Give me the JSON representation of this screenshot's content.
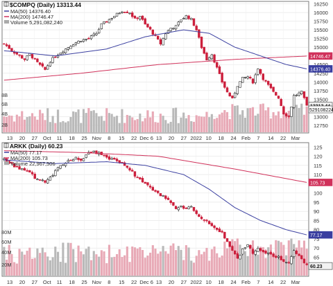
{
  "chart_data": [
    {
      "type": "candlestick",
      "symbol": "$COMPQ",
      "title": "$COMPQ (Daily) 13313.44",
      "legend": {
        "ma50": "MA(50) 14376.40",
        "ma200": "MA(200) 14746.47",
        "volume": "Volume 5,291,082,240"
      },
      "x_tick_labels": [
        "13",
        "20",
        "27",
        "Oct",
        "11",
        "18",
        "25",
        "Nov",
        "8",
        "15",
        "22",
        "Dec 6",
        "13",
        "20",
        "27",
        "2022",
        "10",
        "18",
        "24",
        "Feb",
        "7",
        "14",
        "22",
        "Mar"
      ],
      "y_ticks": [
        12750,
        13000,
        13250,
        13500,
        13750,
        14000,
        14250,
        14500,
        14750,
        15000,
        15250,
        15500,
        15750,
        16000,
        16250
      ],
      "ylim": [
        12550,
        16300
      ],
      "volume_ticks": [
        "2B",
        "4B",
        "6B",
        "8B"
      ],
      "price_tags": [
        {
          "label": "14746.47",
          "value": 14746.47,
          "series": "MA(200)"
        },
        {
          "label": "14376.40",
          "value": 14376.4,
          "series": "MA(50)"
        },
        {
          "label": "13313.44",
          "value": 13313.44,
          "series": "last close"
        }
      ],
      "volume_tag": "5291082240",
      "close_keypoints": [
        [
          0,
          15100
        ],
        [
          4,
          14850
        ],
        [
          8,
          14650
        ],
        [
          10,
          14800
        ],
        [
          13,
          14550
        ],
        [
          16,
          14350
        ],
        [
          18,
          14600
        ],
        [
          21,
          14800
        ],
        [
          24,
          14950
        ],
        [
          27,
          15100
        ],
        [
          30,
          15200
        ],
        [
          33,
          15250
        ],
        [
          36,
          15400
        ],
        [
          38,
          15650
        ],
        [
          40,
          15750
        ],
        [
          43,
          15900
        ],
        [
          46,
          16050
        ],
        [
          49,
          16000
        ],
        [
          51,
          15800
        ],
        [
          53,
          15900
        ],
        [
          55,
          15650
        ],
        [
          57,
          15500
        ],
        [
          59,
          15300
        ],
        [
          61,
          15100
        ],
        [
          63,
          15400
        ],
        [
          65,
          15550
        ],
        [
          67,
          15600
        ],
        [
          69,
          15800
        ],
        [
          71,
          15900
        ],
        [
          73,
          15800
        ],
        [
          75,
          15500
        ],
        [
          77,
          15000
        ],
        [
          79,
          14650
        ],
        [
          81,
          14800
        ],
        [
          83,
          14400
        ],
        [
          85,
          14000
        ],
        [
          87,
          13700
        ],
        [
          89,
          13500
        ],
        [
          91,
          13900
        ],
        [
          93,
          14100
        ],
        [
          95,
          14150
        ],
        [
          97,
          14000
        ],
        [
          99,
          14400
        ],
        [
          101,
          14100
        ],
        [
          103,
          13900
        ],
        [
          105,
          13700
        ],
        [
          107,
          13550
        ],
        [
          109,
          13100
        ],
        [
          111,
          13000
        ],
        [
          113,
          13600
        ],
        [
          116,
          13700
        ],
        [
          118,
          13313
        ]
      ],
      "ma50_keypoints": [
        [
          0,
          14900
        ],
        [
          20,
          14750
        ],
        [
          40,
          14950
        ],
        [
          55,
          15300
        ],
        [
          70,
          15500
        ],
        [
          80,
          15400
        ],
        [
          90,
          15000
        ],
        [
          100,
          14750
        ],
        [
          110,
          14500
        ],
        [
          118,
          14376
        ]
      ],
      "ma200_keypoints": [
        [
          0,
          14050
        ],
        [
          30,
          14250
        ],
        [
          60,
          14500
        ],
        [
          90,
          14650
        ],
        [
          118,
          14746
        ]
      ]
    },
    {
      "type": "candlestick",
      "symbol": "ARKK",
      "title": "ARKK (Daily) 60.23",
      "legend": {
        "ma50": "MA(50) 77.17",
        "ma200": "MA(200) 105.73",
        "volume": "Volume 22,967,506"
      },
      "x_tick_labels": [
        "13",
        "20",
        "27",
        "Oct",
        "11",
        "18",
        "25",
        "Nov",
        "8",
        "15",
        "22",
        "Dec 6",
        "13",
        "20",
        "27",
        "2022",
        "10",
        "18",
        "24",
        "Feb",
        "7",
        "14",
        "22",
        "Mar"
      ],
      "y_ticks": [
        65,
        70,
        75,
        80,
        85,
        90,
        95,
        100,
        105,
        110,
        115,
        120,
        125
      ],
      "ylim": [
        55,
        127
      ],
      "volume_ticks": [
        "20M",
        "40M",
        "60M",
        "80M"
      ],
      "price_tags": [
        {
          "label": "105.73",
          "value": 105.73,
          "series": "MA(200)"
        },
        {
          "label": "77.17",
          "value": 77.17,
          "series": "MA(50)"
        },
        {
          "label": "60.23",
          "value": 60.23,
          "series": "last close"
        }
      ],
      "volume_tag": "",
      "close_keypoints": [
        [
          0,
          118
        ],
        [
          5,
          114
        ],
        [
          10,
          111
        ],
        [
          13,
          107
        ],
        [
          16,
          106
        ],
        [
          19,
          110
        ],
        [
          22,
          115
        ],
        [
          25,
          118
        ],
        [
          28,
          119
        ],
        [
          30,
          118
        ],
        [
          32,
          121
        ],
        [
          34,
          123
        ],
        [
          36,
          122
        ],
        [
          38,
          121
        ],
        [
          40,
          119
        ],
        [
          43,
          118
        ],
        [
          46,
          116
        ],
        [
          49,
          113
        ],
        [
          52,
          108
        ],
        [
          55,
          105
        ],
        [
          58,
          102
        ],
        [
          61,
          99
        ],
        [
          64,
          96
        ],
        [
          67,
          92
        ],
        [
          69,
          93
        ],
        [
          71,
          91
        ],
        [
          73,
          93
        ],
        [
          75,
          89
        ],
        [
          77,
          86
        ],
        [
          79,
          85
        ],
        [
          81,
          82
        ],
        [
          83,
          80
        ],
        [
          85,
          78
        ],
        [
          87,
          73
        ],
        [
          89,
          68
        ],
        [
          91,
          64
        ],
        [
          93,
          69
        ],
        [
          95,
          72
        ],
        [
          97,
          67
        ],
        [
          99,
          70
        ],
        [
          101,
          68
        ],
        [
          103,
          67
        ],
        [
          105,
          66
        ],
        [
          107,
          65
        ],
        [
          109,
          63
        ],
        [
          111,
          62
        ],
        [
          113,
          69
        ],
        [
          116,
          64
        ],
        [
          118,
          60.23
        ]
      ],
      "ma50_keypoints": [
        [
          0,
          118
        ],
        [
          20,
          116
        ],
        [
          40,
          117
        ],
        [
          55,
          115
        ],
        [
          70,
          110
        ],
        [
          80,
          102
        ],
        [
          90,
          92
        ],
        [
          100,
          85
        ],
        [
          110,
          80
        ],
        [
          118,
          77.17
        ]
      ],
      "ma200_keypoints": [
        [
          0,
          123
        ],
        [
          30,
          122
        ],
        [
          60,
          120
        ],
        [
          90,
          113
        ],
        [
          118,
          105.73
        ]
      ]
    }
  ]
}
